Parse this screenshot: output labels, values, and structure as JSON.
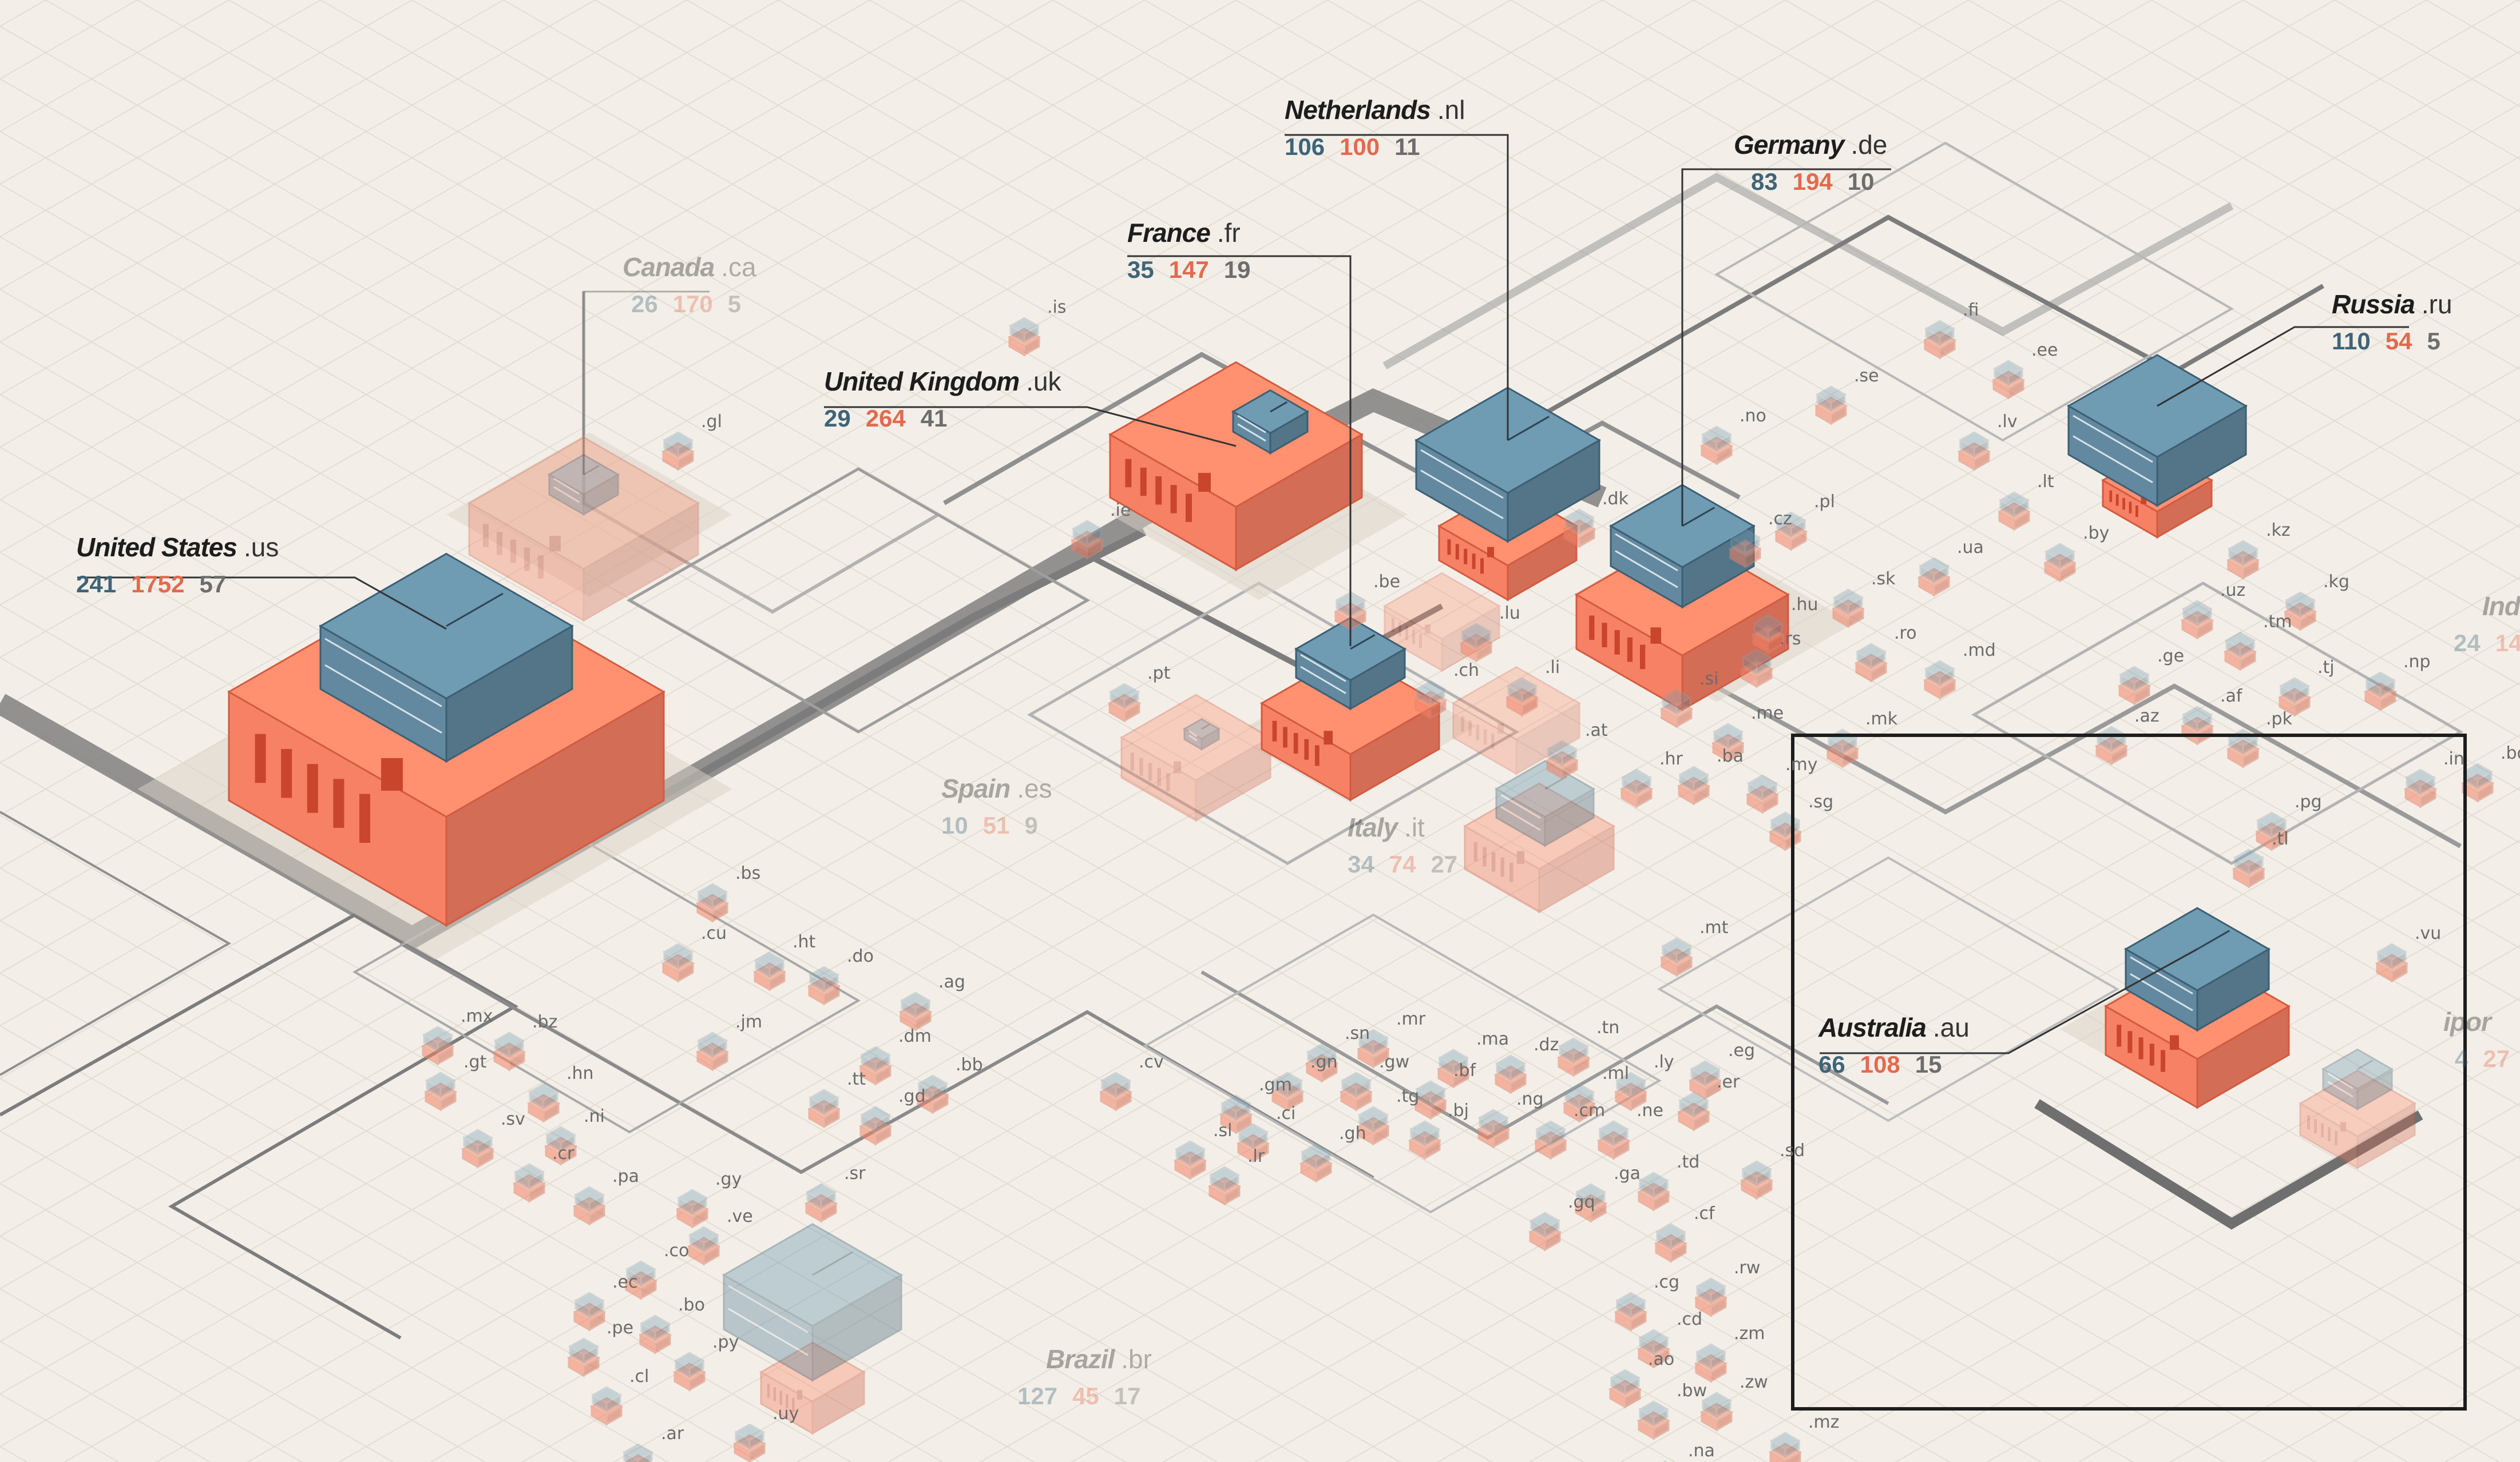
{
  "title": "Internet exchange map by country",
  "colors": {
    "exchange": "#5b7f93",
    "datacenter": "#e5775d",
    "link": "#8a8a8a",
    "bg": "#f3efe8"
  },
  "countries": [
    {
      "id": "us",
      "name": "United States",
      "tld": ".us",
      "stats": [
        "241",
        "1752",
        "57"
      ],
      "faded": false
    },
    {
      "id": "uk",
      "name": "United Kingdom",
      "tld": ".uk",
      "stats": [
        "29",
        "264",
        "41"
      ],
      "faded": false
    },
    {
      "id": "fr",
      "name": "France",
      "tld": ".fr",
      "stats": [
        "35",
        "147",
        "19"
      ],
      "faded": false
    },
    {
      "id": "nl",
      "name": "Netherlands",
      "tld": ".nl",
      "stats": [
        "106",
        "100",
        "11"
      ],
      "faded": false
    },
    {
      "id": "de",
      "name": "Germany",
      "tld": ".de",
      "stats": [
        "83",
        "194",
        "10"
      ],
      "faded": false
    },
    {
      "id": "ru",
      "name": "Russia",
      "tld": ".ru",
      "stats": [
        "110",
        "54",
        "5"
      ],
      "faded": false
    },
    {
      "id": "au",
      "name": "Australia",
      "tld": ".au",
      "stats": [
        "66",
        "108",
        "15"
      ],
      "faded": false
    },
    {
      "id": "ca",
      "name": "Canada",
      "tld": ".ca",
      "stats": [
        "26",
        "170",
        "5"
      ],
      "faded": true
    },
    {
      "id": "es",
      "name": "Spain",
      "tld": ".es",
      "stats": [
        "10",
        "51",
        "9"
      ],
      "faded": true
    },
    {
      "id": "it",
      "name": "Italy",
      "tld": ".it",
      "stats": [
        "34",
        "74",
        "27"
      ],
      "faded": true
    },
    {
      "id": "br",
      "name": "Brazil",
      "tld": ".br",
      "stats": [
        "127",
        "45",
        "17"
      ],
      "faded": true
    },
    {
      "id": "in",
      "name": "Ind",
      "tld": "",
      "stats": [
        "24",
        "14"
      ],
      "faded": true
    },
    {
      "id": "sg",
      "name": "ipor",
      "tld": "",
      "stats": [
        "4",
        "27"
      ],
      "faded": true
    }
  ],
  "tlds": [
    ".is",
    ".gl",
    ".ie",
    ".pt",
    ".bs",
    ".cu",
    ".ht",
    ".do",
    ".jm",
    ".ag",
    ".mx",
    ".bz",
    ".gt",
    ".hn",
    ".sv",
    ".ni",
    ".cr",
    ".pa",
    ".dm",
    ".tt",
    ".bb",
    ".gd",
    ".gy",
    ".sr",
    ".ve",
    ".co",
    ".ec",
    ".pe",
    ".bo",
    ".py",
    ".cl",
    ".ar",
    ".uy",
    ".cv",
    ".gm",
    ".sn",
    ".mr",
    ".ma",
    ".dz",
    ".tn",
    ".ly",
    ".eg",
    ".gn",
    ".gw",
    ".bf",
    ".ml",
    ".sl",
    ".ci",
    ".tg",
    ".bj",
    ".ng",
    ".cm",
    ".ne",
    ".er",
    ".lr",
    ".gh",
    ".ga",
    ".gq",
    ".td",
    ".cf",
    ".sd",
    ".rw",
    ".cg",
    ".cd",
    ".zm",
    ".ao",
    ".bw",
    ".zw",
    ".na",
    ".mz",
    ".be",
    ".lu",
    ".ch",
    ".li",
    ".at",
    ".si",
    ".hr",
    ".ba",
    ".me",
    ".rs",
    ".hu",
    ".sk",
    ".cz",
    ".pl",
    ".dk",
    ".no",
    ".se",
    ".fi",
    ".ee",
    ".lv",
    ".lt",
    ".by",
    ".ua",
    ".md",
    ".ro",
    ".mk",
    ".mt",
    ".kz",
    ".uz",
    ".kg",
    ".tm",
    ".tj",
    ".af",
    ".pk",
    ".np",
    ".az",
    ".ge",
    ".my",
    ".sg",
    ".pg",
    ".tl",
    ".vu",
    ".in",
    ".bd"
  ]
}
